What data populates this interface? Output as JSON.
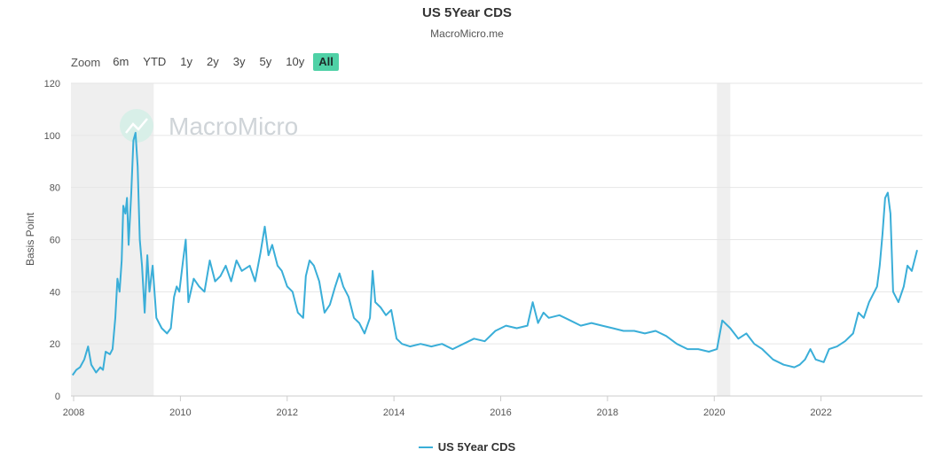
{
  "chart_data": {
    "type": "line",
    "title": "US 5Year CDS",
    "subtitle": "MacroMicro.me",
    "watermark": "MacroMicro",
    "ylabel": "Basis Point",
    "ylim": [
      0,
      120
    ],
    "yticks": [
      "0",
      "20",
      "40",
      "60",
      "80",
      "100",
      "120"
    ],
    "xlim": [
      2007.95,
      2023.9
    ],
    "xticks": [
      {
        "x": 2008,
        "label": "2008"
      },
      {
        "x": 2010,
        "label": "2010"
      },
      {
        "x": 2012,
        "label": "2012"
      },
      {
        "x": 2014,
        "label": "2014"
      },
      {
        "x": 2016,
        "label": "2016"
      },
      {
        "x": 2018,
        "label": "2018"
      },
      {
        "x": 2020,
        "label": "2020"
      },
      {
        "x": 2022,
        "label": "2022"
      }
    ],
    "grid": true,
    "legend_position": "bottom-center",
    "recession_bands": [
      [
        2007.95,
        2009.5
      ],
      [
        2020.05,
        2020.3
      ]
    ],
    "colors": {
      "line": "#3aaed8",
      "band": "#efefef",
      "grid": "#e6e6e6",
      "watermark": "#cfd4d8"
    },
    "series": [
      {
        "name": "US 5Year CDS",
        "points": [
          [
            2007.98,
            8
          ],
          [
            2008.05,
            10
          ],
          [
            2008.12,
            11
          ],
          [
            2008.2,
            14
          ],
          [
            2008.27,
            19
          ],
          [
            2008.33,
            12
          ],
          [
            2008.42,
            9
          ],
          [
            2008.5,
            11
          ],
          [
            2008.55,
            10
          ],
          [
            2008.6,
            17
          ],
          [
            2008.68,
            16
          ],
          [
            2008.73,
            18
          ],
          [
            2008.78,
            30
          ],
          [
            2008.82,
            45
          ],
          [
            2008.86,
            40
          ],
          [
            2008.9,
            52
          ],
          [
            2008.93,
            73
          ],
          [
            2008.97,
            70
          ],
          [
            2009.0,
            76
          ],
          [
            2009.03,
            58
          ],
          [
            2009.08,
            78
          ],
          [
            2009.12,
            98
          ],
          [
            2009.16,
            101
          ],
          [
            2009.2,
            88
          ],
          [
            2009.24,
            60
          ],
          [
            2009.28,
            50
          ],
          [
            2009.33,
            32
          ],
          [
            2009.38,
            54
          ],
          [
            2009.42,
            40
          ],
          [
            2009.48,
            50
          ],
          [
            2009.55,
            30
          ],
          [
            2009.65,
            26
          ],
          [
            2009.75,
            24
          ],
          [
            2009.82,
            26
          ],
          [
            2009.88,
            38
          ],
          [
            2009.93,
            42
          ],
          [
            2009.98,
            40
          ],
          [
            2010.05,
            52
          ],
          [
            2010.1,
            60
          ],
          [
            2010.15,
            36
          ],
          [
            2010.25,
            45
          ],
          [
            2010.35,
            42
          ],
          [
            2010.45,
            40
          ],
          [
            2010.55,
            52
          ],
          [
            2010.65,
            44
          ],
          [
            2010.75,
            46
          ],
          [
            2010.85,
            50
          ],
          [
            2010.95,
            44
          ],
          [
            2011.05,
            52
          ],
          [
            2011.15,
            48
          ],
          [
            2011.3,
            50
          ],
          [
            2011.4,
            44
          ],
          [
            2011.5,
            55
          ],
          [
            2011.58,
            65
          ],
          [
            2011.65,
            54
          ],
          [
            2011.72,
            58
          ],
          [
            2011.82,
            50
          ],
          [
            2011.9,
            48
          ],
          [
            2012.0,
            42
          ],
          [
            2012.1,
            40
          ],
          [
            2012.2,
            32
          ],
          [
            2012.3,
            30
          ],
          [
            2012.35,
            46
          ],
          [
            2012.42,
            52
          ],
          [
            2012.5,
            50
          ],
          [
            2012.6,
            44
          ],
          [
            2012.7,
            32
          ],
          [
            2012.8,
            35
          ],
          [
            2012.9,
            42
          ],
          [
            2012.98,
            47
          ],
          [
            2013.05,
            42
          ],
          [
            2013.15,
            38
          ],
          [
            2013.25,
            30
          ],
          [
            2013.35,
            28
          ],
          [
            2013.45,
            24
          ],
          [
            2013.55,
            30
          ],
          [
            2013.6,
            48
          ],
          [
            2013.65,
            36
          ],
          [
            2013.75,
            34
          ],
          [
            2013.85,
            31
          ],
          [
            2013.95,
            33
          ],
          [
            2014.05,
            22
          ],
          [
            2014.15,
            20
          ],
          [
            2014.3,
            19
          ],
          [
            2014.5,
            20
          ],
          [
            2014.7,
            19
          ],
          [
            2014.9,
            20
          ],
          [
            2015.1,
            18
          ],
          [
            2015.3,
            20
          ],
          [
            2015.5,
            22
          ],
          [
            2015.7,
            21
          ],
          [
            2015.9,
            25
          ],
          [
            2016.1,
            27
          ],
          [
            2016.3,
            26
          ],
          [
            2016.5,
            27
          ],
          [
            2016.6,
            36
          ],
          [
            2016.7,
            28
          ],
          [
            2016.8,
            32
          ],
          [
            2016.9,
            30
          ],
          [
            2017.1,
            31
          ],
          [
            2017.3,
            29
          ],
          [
            2017.5,
            27
          ],
          [
            2017.7,
            28
          ],
          [
            2017.9,
            27
          ],
          [
            2018.1,
            26
          ],
          [
            2018.3,
            25
          ],
          [
            2018.5,
            25
          ],
          [
            2018.7,
            24
          ],
          [
            2018.9,
            25
          ],
          [
            2019.1,
            23
          ],
          [
            2019.3,
            20
          ],
          [
            2019.5,
            18
          ],
          [
            2019.7,
            18
          ],
          [
            2019.9,
            17
          ],
          [
            2020.05,
            18
          ],
          [
            2020.15,
            29
          ],
          [
            2020.3,
            26
          ],
          [
            2020.45,
            22
          ],
          [
            2020.6,
            24
          ],
          [
            2020.75,
            20
          ],
          [
            2020.9,
            18
          ],
          [
            2021.1,
            14
          ],
          [
            2021.3,
            12
          ],
          [
            2021.5,
            11
          ],
          [
            2021.6,
            12
          ],
          [
            2021.7,
            14
          ],
          [
            2021.8,
            18
          ],
          [
            2021.9,
            14
          ],
          [
            2022.05,
            13
          ],
          [
            2022.15,
            18
          ],
          [
            2022.3,
            19
          ],
          [
            2022.45,
            21
          ],
          [
            2022.6,
            24
          ],
          [
            2022.7,
            32
          ],
          [
            2022.8,
            30
          ],
          [
            2022.9,
            36
          ],
          [
            2022.95,
            38
          ],
          [
            2023.0,
            40
          ],
          [
            2023.05,
            42
          ],
          [
            2023.1,
            50
          ],
          [
            2023.15,
            62
          ],
          [
            2023.2,
            76
          ],
          [
            2023.25,
            78
          ],
          [
            2023.3,
            70
          ],
          [
            2023.35,
            40
          ],
          [
            2023.45,
            36
          ],
          [
            2023.55,
            42
          ],
          [
            2023.62,
            50
          ],
          [
            2023.7,
            48
          ],
          [
            2023.8,
            56
          ]
        ]
      }
    ]
  },
  "range_selector": {
    "zoom_label": "Zoom",
    "buttons": [
      "6m",
      "YTD",
      "1y",
      "2y",
      "3y",
      "5y",
      "10y",
      "All"
    ],
    "active": "All"
  }
}
